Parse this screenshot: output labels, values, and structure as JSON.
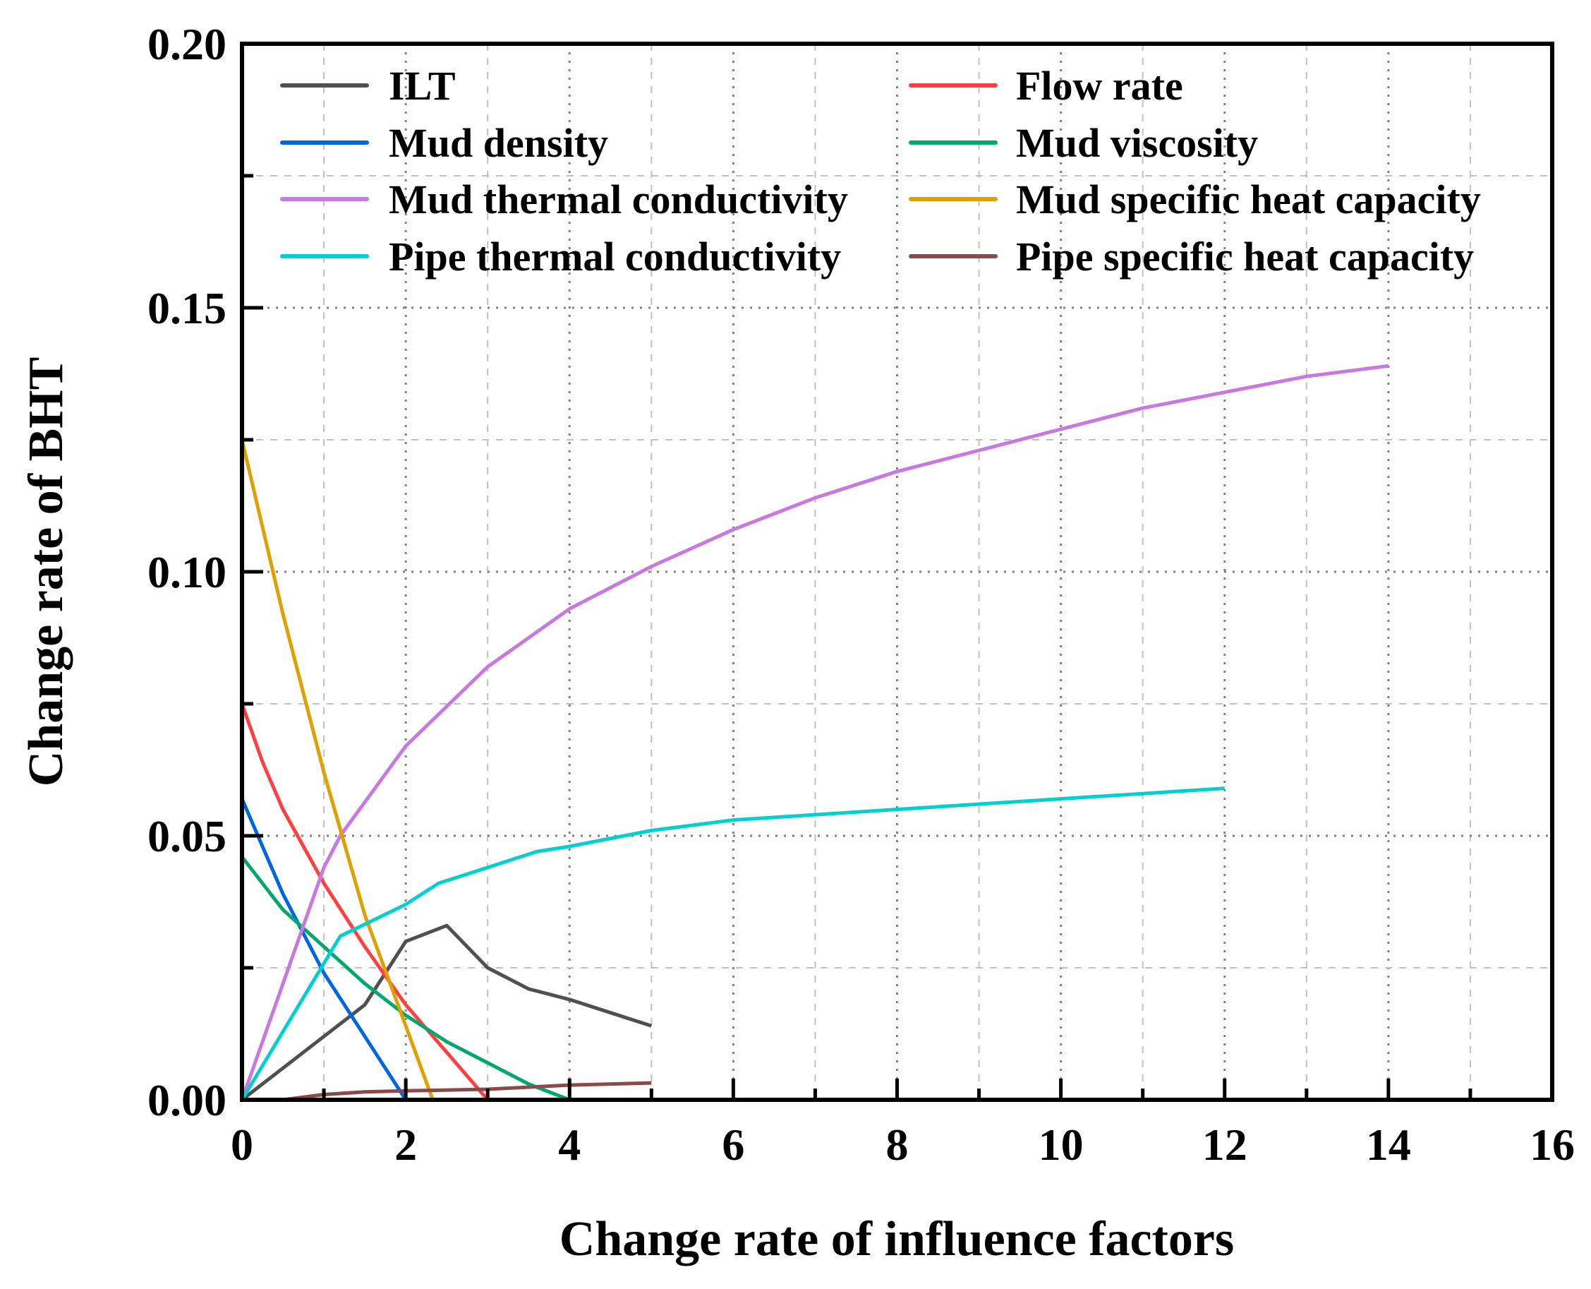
{
  "chart_data": {
    "type": "line",
    "title": "",
    "xlabel": "Change rate of influence factors",
    "ylabel": "Change rate of BHT",
    "xlim": [
      0,
      16
    ],
    "ylim": [
      0,
      0.2
    ],
    "xticks": [
      0,
      2,
      4,
      6,
      8,
      10,
      12,
      14,
      16
    ],
    "xtick_labels": [
      "0",
      "2",
      "4",
      "6",
      "8",
      "10",
      "12",
      "14",
      "16"
    ],
    "yticks": [
      0,
      0.05,
      0.1,
      0.15,
      0.2
    ],
    "ytick_labels": [
      "0.00",
      "0.05",
      "0.10",
      "0.15",
      "0.20"
    ],
    "x_minor_step": 1,
    "y_minor_step": 0.025,
    "grid": true,
    "legend_placement": "top",
    "series": [
      {
        "name": "ILT",
        "color": "#505050",
        "x": [
          0,
          1,
          1.5,
          2,
          2.5,
          3,
          3.5,
          4,
          5
        ],
        "y": [
          0,
          0.012,
          0.018,
          0.03,
          0.033,
          0.025,
          0.021,
          0.019,
          0.014
        ]
      },
      {
        "name": "Flow rate",
        "color": "#ff4040",
        "x": [
          0,
          0.25,
          0.5,
          1,
          1.5,
          2,
          2.5,
          3
        ],
        "y": [
          0.075,
          0.064,
          0.055,
          0.041,
          0.029,
          0.018,
          0.009,
          0
        ]
      },
      {
        "name": "Mud density",
        "color": "#0066e0",
        "x": [
          0,
          0.5,
          1,
          1.5,
          2
        ],
        "y": [
          0.057,
          0.039,
          0.024,
          0.012,
          0
        ]
      },
      {
        "name": "Mud viscosity",
        "color": "#00a86b",
        "x": [
          0,
          0.5,
          1,
          1.5,
          2,
          2.5,
          3,
          3.5,
          4
        ],
        "y": [
          0.046,
          0.036,
          0.029,
          0.022,
          0.016,
          0.011,
          0.007,
          0.003,
          0
        ]
      },
      {
        "name": "Mud thermal conductivity",
        "color": "#c878e0",
        "x": [
          0,
          1,
          1.2,
          2,
          3,
          4,
          5,
          6,
          7,
          8,
          9,
          10,
          11,
          12,
          13,
          14
        ],
        "y": [
          0,
          0.044,
          0.05,
          0.067,
          0.082,
          0.093,
          0.101,
          0.108,
          0.114,
          0.119,
          0.123,
          0.127,
          0.131,
          0.134,
          0.137,
          0.139
        ]
      },
      {
        "name": "Mud specific heat capacity",
        "color": "#e0a000",
        "x": [
          0,
          0.5,
          1,
          1.5,
          2,
          2.33
        ],
        "y": [
          0.125,
          0.092,
          0.062,
          0.035,
          0.014,
          0
        ]
      },
      {
        "name": "Pipe thermal conductivity",
        "color": "#00d0d0",
        "x": [
          0,
          1.2,
          2,
          2.4,
          3,
          3.6,
          4,
          5,
          6,
          7,
          8,
          9,
          10,
          11,
          12
        ],
        "y": [
          0,
          0.031,
          0.037,
          0.041,
          0.044,
          0.047,
          0.048,
          0.051,
          0.053,
          0.054,
          0.055,
          0.056,
          0.057,
          0.058,
          0.059
        ]
      },
      {
        "name": "Pipe specific heat capacity",
        "color": "#8b4a4a",
        "x": [
          0,
          0.5,
          1,
          1.5,
          2,
          3,
          4,
          5
        ],
        "y": [
          0,
          0,
          0.001,
          0.0015,
          0.0017,
          0.002,
          0.0028,
          0.0032
        ]
      }
    ]
  }
}
